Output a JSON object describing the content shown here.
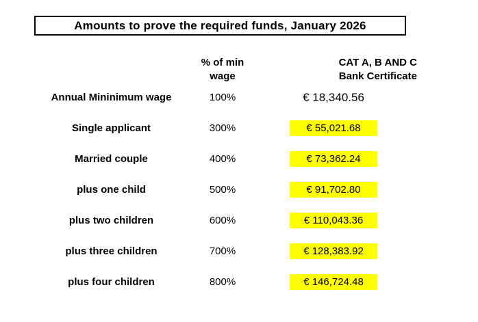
{
  "title": "Amounts to prove the required funds, January 2026",
  "table": {
    "col1_header": "",
    "col2_header": "% of min wage",
    "col3_header_line1": "CAT A, B AND C",
    "col3_header_line2": "Bank Certificate",
    "highlight_color": "#FFFF00",
    "rows": [
      {
        "label": "Annual Mininimum wage",
        "percent": "100%",
        "amount": "€ 18,340.56",
        "highlighted": false
      },
      {
        "label": "Single applicant",
        "percent": "300%",
        "amount": "€ 55,021.68",
        "highlighted": true
      },
      {
        "label": "Married couple",
        "percent": "400%",
        "amount": "€ 73,362.24",
        "highlighted": true
      },
      {
        "label": "plus one child",
        "percent": "500%",
        "amount": "€ 91,702.80",
        "highlighted": true
      },
      {
        "label": "plus two children",
        "percent": "600%",
        "amount": "€ 110,043.36",
        "highlighted": true
      },
      {
        "label": "plus three children",
        "percent": "700%",
        "amount": "€ 128,383.92",
        "highlighted": true
      },
      {
        "label": "plus four children",
        "percent": "800%",
        "amount": "€ 146,724.48",
        "highlighted": true
      }
    ]
  }
}
